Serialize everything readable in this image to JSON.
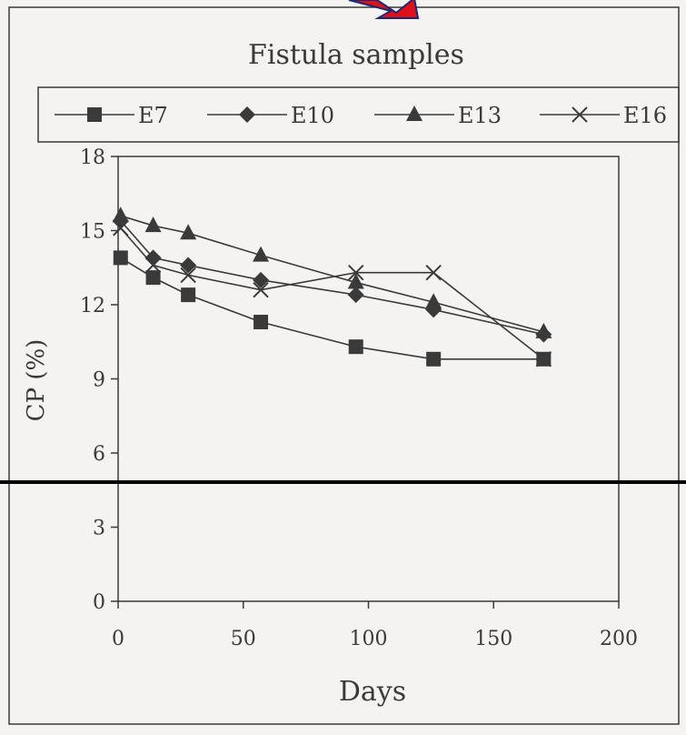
{
  "chart_data": {
    "type": "line",
    "title": "Fistula samples",
    "xlabel": "Days",
    "ylabel": "CP (%)",
    "xlim": [
      0,
      200
    ],
    "ylim": [
      0,
      18
    ],
    "x_ticks": [
      0,
      50,
      100,
      150,
      200
    ],
    "y_ticks": [
      0,
      3,
      6,
      9,
      12,
      15,
      18
    ],
    "x_tick_labels": [
      "0",
      "50",
      "100",
      "150",
      "200"
    ],
    "y_tick_labels": [
      "0",
      "3",
      "6",
      "9",
      "12",
      "15",
      "18"
    ],
    "grid": false,
    "legend_position": "top",
    "series": [
      {
        "name": "E7",
        "marker": "square",
        "x": [
          1,
          14,
          28,
          57,
          95,
          126,
          170
        ],
        "y": [
          13.9,
          13.1,
          12.4,
          11.3,
          10.3,
          9.8,
          9.8
        ]
      },
      {
        "name": "E10",
        "marker": "diamond",
        "x": [
          1,
          14,
          28,
          57,
          95,
          126,
          170
        ],
        "y": [
          15.4,
          13.9,
          13.6,
          13.0,
          12.4,
          11.8,
          10.8
        ]
      },
      {
        "name": "E13",
        "marker": "triangle",
        "x": [
          1,
          14,
          28,
          57,
          95,
          126,
          170
        ],
        "y": [
          15.6,
          15.2,
          14.9,
          14.0,
          12.9,
          12.1,
          10.9
        ]
      },
      {
        "name": "E16",
        "marker": "x",
        "x": [
          1,
          14,
          28,
          57,
          95,
          126,
          170
        ],
        "y": [
          15.1,
          13.6,
          13.2,
          12.6,
          13.3,
          13.3,
          9.8
        ]
      }
    ]
  },
  "colors": {
    "ink": "#3a3a3a",
    "paper": "#f4f3f1",
    "arrow": "#e0101a",
    "arrow_outline": "#1a2a6e",
    "overlay_line": "#000000"
  },
  "icons": {
    "arrow": "red-arrow-icon"
  }
}
